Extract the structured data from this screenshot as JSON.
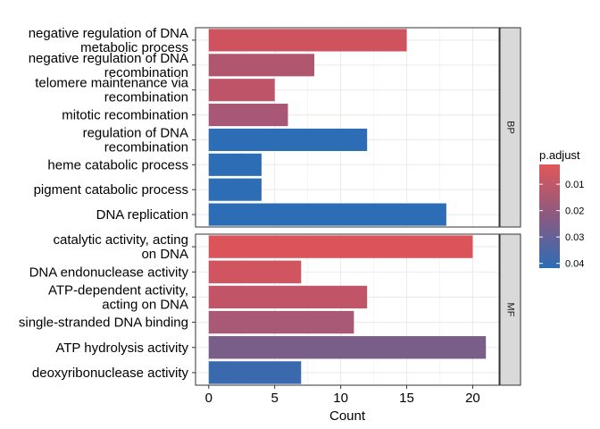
{
  "chart_data": {
    "type": "bar",
    "orientation": "horizontal",
    "xlabel": "Count",
    "x_ticks": [
      0,
      5,
      10,
      15,
      20
    ],
    "xlim": [
      -1,
      22
    ],
    "grid": true,
    "legend": {
      "title": "p.adjust",
      "placement": "right",
      "ticks": [
        "0.01",
        "0.02",
        "0.03",
        "0.04"
      ],
      "tick_values": [
        0.01,
        0.02,
        0.03,
        0.04
      ],
      "range": [
        0.0025,
        0.0418
      ],
      "color_low": "#e15759",
      "color_mid": "#8a5a82",
      "color_high": "#2c6db5"
    },
    "panels": [
      {
        "strip": "BP",
        "categories": [
          [
            "negative regulation of DNA",
            "metabolic process"
          ],
          [
            "negative regulation of DNA",
            "recombination"
          ],
          [
            "telomere maintenance via",
            "recombination"
          ],
          [
            "mitotic recombination"
          ],
          [
            "regulation of DNA",
            "recombination"
          ],
          [
            "heme catabolic process"
          ],
          [
            "pigment catabolic process"
          ],
          [
            "DNA replication"
          ]
        ],
        "values": [
          15,
          8,
          5,
          6,
          12,
          4,
          4,
          18
        ],
        "colors": [
          "#cf525f",
          "#b0566e",
          "#bd5468",
          "#a85874",
          "#2c6db5",
          "#2c6db5",
          "#2c6db5",
          "#2c6db5"
        ]
      },
      {
        "strip": "MF",
        "categories": [
          [
            "catalytic activity, acting",
            "on DNA"
          ],
          [
            "DNA endonuclease activity"
          ],
          [
            "ATP-dependent activity,",
            "acting on DNA"
          ],
          [
            "single-stranded DNA binding"
          ],
          [
            "ATP hydrolysis activity"
          ],
          [
            "deoxyribonuclease activity"
          ]
        ],
        "values": [
          20,
          7,
          12,
          11,
          21,
          7
        ],
        "colors": [
          "#db5459",
          "#d15461",
          "#c15466",
          "#a95875",
          "#7a5e8a",
          "#3b69ad"
        ]
      }
    ]
  }
}
